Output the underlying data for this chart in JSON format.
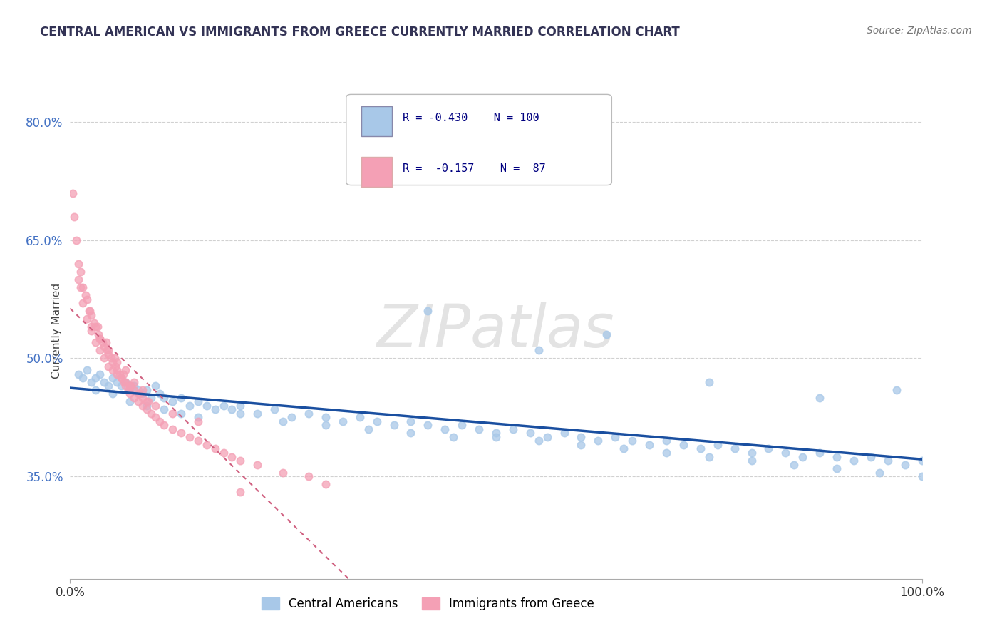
{
  "title": "CENTRAL AMERICAN VS IMMIGRANTS FROM GREECE CURRENTLY MARRIED CORRELATION CHART",
  "source_text": "Source: ZipAtlas.com",
  "ylabel": "Currently Married",
  "xlim": [
    0.0,
    100.0
  ],
  "ylim": [
    22.0,
    85.0
  ],
  "yticks": [
    35.0,
    50.0,
    65.0,
    80.0
  ],
  "xticks": [
    0.0,
    100.0
  ],
  "xtick_labels": [
    "0.0%",
    "100.0%"
  ],
  "ytick_labels": [
    "35.0%",
    "50.0%",
    "65.0%",
    "80.0%"
  ],
  "color_blue": "#a8c8e8",
  "color_pink": "#f4a0b5",
  "line_blue": "#1a4fa0",
  "line_pink": "#d06080",
  "watermark": "ZIPatlas",
  "background_color": "#ffffff",
  "grid_color": "#cccccc",
  "ca_x": [
    1.0,
    1.5,
    2.0,
    2.5,
    3.0,
    3.5,
    4.0,
    4.5,
    5.0,
    5.5,
    6.0,
    6.5,
    7.0,
    7.5,
    8.0,
    8.5,
    9.0,
    9.5,
    10.0,
    10.5,
    11.0,
    12.0,
    13.0,
    14.0,
    15.0,
    16.0,
    17.0,
    18.0,
    19.0,
    20.0,
    22.0,
    24.0,
    26.0,
    28.0,
    30.0,
    32.0,
    34.0,
    36.0,
    38.0,
    40.0,
    42.0,
    44.0,
    46.0,
    48.0,
    50.0,
    52.0,
    54.0,
    56.0,
    58.0,
    60.0,
    62.0,
    64.0,
    66.0,
    68.0,
    70.0,
    72.0,
    74.0,
    76.0,
    78.0,
    80.0,
    82.0,
    84.0,
    86.0,
    88.0,
    90.0,
    92.0,
    94.0,
    96.0,
    98.0,
    100.0,
    3.0,
    5.0,
    7.0,
    9.0,
    11.0,
    13.0,
    15.0,
    20.0,
    25.0,
    30.0,
    35.0,
    40.0,
    45.0,
    50.0,
    55.0,
    60.0,
    65.0,
    70.0,
    75.0,
    80.0,
    85.0,
    90.0,
    95.0,
    100.0,
    42.0,
    55.0,
    63.0,
    75.0,
    88.0,
    97.0
  ],
  "ca_y": [
    48.0,
    47.5,
    48.5,
    47.0,
    47.5,
    48.0,
    47.0,
    46.5,
    47.5,
    47.0,
    46.5,
    47.0,
    46.0,
    46.5,
    46.0,
    45.5,
    46.0,
    45.0,
    46.5,
    45.5,
    45.0,
    44.5,
    45.0,
    44.0,
    44.5,
    44.0,
    43.5,
    44.0,
    43.5,
    44.0,
    43.0,
    43.5,
    42.5,
    43.0,
    42.5,
    42.0,
    42.5,
    42.0,
    41.5,
    42.0,
    41.5,
    41.0,
    41.5,
    41.0,
    40.5,
    41.0,
    40.5,
    40.0,
    40.5,
    40.0,
    39.5,
    40.0,
    39.5,
    39.0,
    39.5,
    39.0,
    38.5,
    39.0,
    38.5,
    38.0,
    38.5,
    38.0,
    37.5,
    38.0,
    37.5,
    37.0,
    37.5,
    37.0,
    36.5,
    37.0,
    46.0,
    45.5,
    44.5,
    44.0,
    43.5,
    43.0,
    42.5,
    43.0,
    42.0,
    41.5,
    41.0,
    40.5,
    40.0,
    40.0,
    39.5,
    39.0,
    38.5,
    38.0,
    37.5,
    37.0,
    36.5,
    36.0,
    35.5,
    35.0,
    56.0,
    51.0,
    53.0,
    47.0,
    45.0,
    46.0
  ],
  "gr_x": [
    0.3,
    0.5,
    0.7,
    1.0,
    1.2,
    1.5,
    1.8,
    2.0,
    2.3,
    2.5,
    2.8,
    3.0,
    3.3,
    3.5,
    3.8,
    4.0,
    4.3,
    4.5,
    4.8,
    5.0,
    5.3,
    5.5,
    5.8,
    6.0,
    6.3,
    6.5,
    6.8,
    7.0,
    7.5,
    8.0,
    8.5,
    9.0,
    9.5,
    10.0,
    10.5,
    11.0,
    12.0,
    13.0,
    14.0,
    15.0,
    16.0,
    17.0,
    18.0,
    19.0,
    20.0,
    22.0,
    25.0,
    28.0,
    30.0,
    1.0,
    1.5,
    2.0,
    2.5,
    3.0,
    3.5,
    4.0,
    4.5,
    5.0,
    5.5,
    6.0,
    6.5,
    7.0,
    7.5,
    8.0,
    8.5,
    9.0,
    10.0,
    12.0,
    15.0,
    1.2,
    2.2,
    3.2,
    4.2,
    5.2,
    6.2,
    7.2,
    8.2,
    9.2,
    2.5,
    3.5,
    4.5,
    5.5,
    6.5,
    7.5,
    8.5,
    20.0
  ],
  "gr_y": [
    71.0,
    68.0,
    65.0,
    62.0,
    61.0,
    59.0,
    58.0,
    57.5,
    56.0,
    55.5,
    54.5,
    54.0,
    53.0,
    52.5,
    52.0,
    51.5,
    51.0,
    50.5,
    50.0,
    49.5,
    49.0,
    48.5,
    48.0,
    47.5,
    47.0,
    46.5,
    46.0,
    45.5,
    45.0,
    44.5,
    44.0,
    43.5,
    43.0,
    42.5,
    42.0,
    41.5,
    41.0,
    40.5,
    40.0,
    39.5,
    39.0,
    38.5,
    38.0,
    37.5,
    37.0,
    36.5,
    35.5,
    35.0,
    34.0,
    60.0,
    57.0,
    55.0,
    53.5,
    52.0,
    51.0,
    50.0,
    49.0,
    48.5,
    48.0,
    47.5,
    47.0,
    46.5,
    46.0,
    45.5,
    45.0,
    44.5,
    44.0,
    43.0,
    42.0,
    59.0,
    56.0,
    54.0,
    52.0,
    50.0,
    48.0,
    46.5,
    45.5,
    44.5,
    54.0,
    52.5,
    51.0,
    49.5,
    48.5,
    47.0,
    46.0,
    33.0
  ]
}
